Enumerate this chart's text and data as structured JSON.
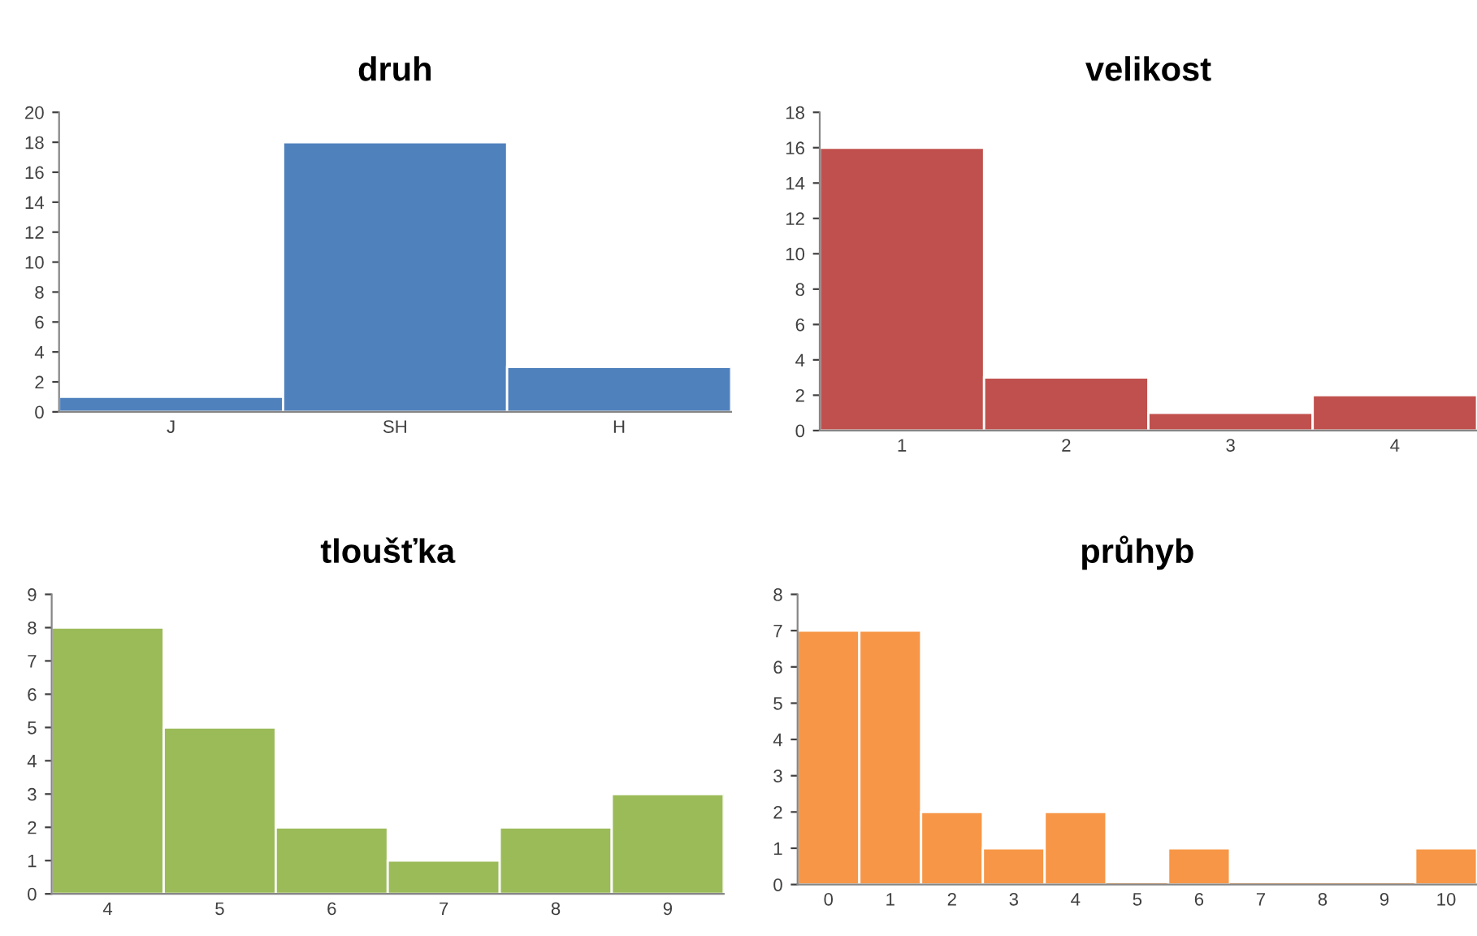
{
  "chart_data": [
    {
      "type": "bar",
      "title": "druh",
      "categories": [
        "J",
        "SH",
        "H"
      ],
      "values": [
        1,
        18,
        3
      ],
      "color": "#4f81bd",
      "ylim": [
        0,
        20
      ],
      "yticks": [
        0,
        2,
        4,
        6,
        8,
        10,
        12,
        14,
        16,
        18,
        20
      ],
      "grid": false,
      "legend": false
    },
    {
      "type": "bar",
      "title": "velikost",
      "categories": [
        "1",
        "2",
        "3",
        "4"
      ],
      "values": [
        16,
        3,
        1,
        2
      ],
      "color": "#c0504d",
      "ylim": [
        0,
        18
      ],
      "yticks": [
        0,
        2,
        4,
        6,
        8,
        10,
        12,
        14,
        16,
        18
      ],
      "grid": false,
      "legend": false
    },
    {
      "type": "bar",
      "title": "tloušťka",
      "categories": [
        "4",
        "5",
        "6",
        "7",
        "8",
        "9"
      ],
      "values": [
        8,
        5,
        2,
        1,
        2,
        3
      ],
      "color": "#9bbb59",
      "ylim": [
        0,
        9
      ],
      "yticks": [
        0,
        1,
        2,
        3,
        4,
        5,
        6,
        7,
        8,
        9
      ],
      "grid": false,
      "legend": false
    },
    {
      "type": "bar",
      "title": "průhyb",
      "categories": [
        "0",
        "1",
        "2",
        "3",
        "4",
        "5",
        "6",
        "7",
        "8",
        "9",
        "10"
      ],
      "values": [
        7,
        7,
        2,
        1,
        2,
        0,
        1,
        0,
        0,
        0,
        1
      ],
      "color": "#f79646",
      "ylim": [
        0,
        8
      ],
      "yticks": [
        0,
        1,
        2,
        3,
        4,
        5,
        6,
        7,
        8
      ],
      "grid": false,
      "legend": false
    }
  ]
}
